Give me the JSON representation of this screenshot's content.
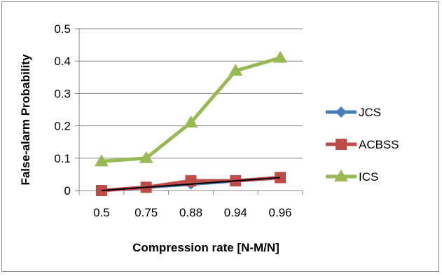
{
  "chart_data": {
    "type": "line",
    "title": "",
    "xlabel": "Compression rate [N-M/N]",
    "ylabel": "False-alarm Probability",
    "categories": [
      "0.5",
      "0.75",
      "0.88",
      "0.94",
      "0.96"
    ],
    "ylim": [
      0,
      0.5
    ],
    "yticks": [
      0,
      0.1,
      0.2,
      0.3,
      0.4,
      0.5
    ],
    "ytick_labels": [
      "0",
      "0.1",
      "0.2",
      "0.3",
      "0.4",
      "0.5"
    ],
    "grid": "horizontal",
    "legend_position": "right",
    "series": [
      {
        "name": "JCS",
        "values": [
          0,
          0.01,
          0.02,
          0.03,
          0.04
        ],
        "color": "#4a7ebb",
        "marker": "diamond"
      },
      {
        "name": "ACBSS",
        "values": [
          0,
          0.01,
          0.03,
          0.03,
          0.04
        ],
        "color": "#be4b48",
        "marker": "square"
      },
      {
        "name": "ICS",
        "values": [
          0.09,
          0.1,
          0.21,
          0.37,
          0.41
        ],
        "color": "#98b954",
        "marker": "triangle"
      }
    ],
    "trendline": {
      "values": [
        0,
        0.01,
        0.02,
        0.03,
        0.04
      ],
      "color": "#000000"
    }
  }
}
